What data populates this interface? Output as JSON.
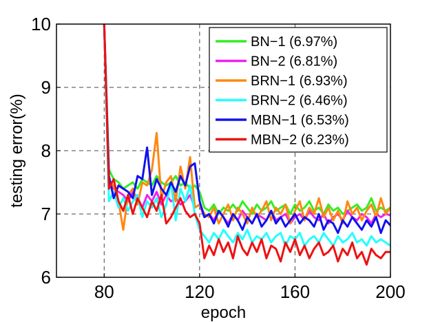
{
  "chart_data": {
    "type": "line",
    "title": "",
    "xlabel": "epoch",
    "ylabel": "testing error(%)",
    "xlim": [
      60,
      200
    ],
    "ylim": [
      6,
      10
    ],
    "xticks": [
      "80",
      "120",
      "160",
      "200"
    ],
    "yticks": [
      "6",
      "7",
      "8",
      "9",
      "10"
    ],
    "grid": "dashed lines at ticks",
    "legend_position": "top-right",
    "series": [
      {
        "name": "BN−1 (6.97%)",
        "color": "#33ee22",
        "x": [
          80,
          82,
          84,
          86,
          88,
          90,
          92,
          94,
          96,
          98,
          100,
          102,
          104,
          106,
          108,
          110,
          112,
          114,
          116,
          118,
          120,
          122,
          124,
          126,
          128,
          130,
          132,
          134,
          136,
          138,
          140,
          142,
          144,
          146,
          148,
          150,
          152,
          154,
          156,
          158,
          160,
          162,
          164,
          166,
          168,
          170,
          172,
          174,
          176,
          178,
          180,
          182,
          184,
          186,
          188,
          190,
          192,
          194,
          196,
          198,
          200
        ],
        "values": [
          10,
          7.7,
          7.55,
          7.5,
          7.4,
          7.45,
          7.5,
          7.4,
          7.55,
          7.5,
          7.45,
          7.6,
          7.5,
          7.45,
          7.5,
          7.6,
          7.45,
          7.5,
          7.4,
          7.45,
          7.35,
          7.1,
          7.05,
          7.15,
          7.0,
          7.1,
          7.05,
          7.15,
          7.05,
          7.2,
          7.1,
          7.0,
          7.15,
          7.05,
          7.1,
          7.2,
          7.05,
          7.1,
          7.15,
          7.0,
          7.15,
          7.05,
          7.1,
          7.2,
          7.05,
          7.1,
          7.0,
          7.15,
          7.05,
          7.1,
          7.0,
          7.05,
          7.1,
          7.15,
          7.05,
          7.1,
          7.25,
          7.05,
          7.1,
          7.05,
          7.1
        ]
      },
      {
        "name": "BN−2 (6.81%)",
        "color": "#ee22ee",
        "x": [
          80,
          82,
          84,
          86,
          88,
          90,
          92,
          94,
          96,
          98,
          100,
          102,
          104,
          106,
          108,
          110,
          112,
          114,
          116,
          118,
          120,
          122,
          124,
          126,
          128,
          130,
          132,
          134,
          136,
          138,
          140,
          142,
          144,
          146,
          148,
          150,
          152,
          154,
          156,
          158,
          160,
          162,
          164,
          166,
          168,
          170,
          172,
          174,
          176,
          178,
          180,
          182,
          184,
          186,
          188,
          190,
          192,
          194,
          196,
          198,
          200
        ],
        "values": [
          10,
          7.5,
          7.4,
          7.35,
          7.3,
          7.2,
          7.35,
          7.25,
          7.1,
          7.3,
          7.2,
          7.35,
          7.15,
          7.3,
          7.2,
          7.25,
          7.15,
          7.2,
          7.3,
          7.1,
          7.15,
          6.95,
          7.0,
          6.9,
          7.05,
          6.95,
          6.85,
          7.0,
          6.9,
          7.05,
          6.95,
          6.85,
          7.0,
          6.95,
          6.9,
          7.05,
          6.9,
          6.95,
          7.0,
          6.85,
          6.95,
          7.0,
          6.9,
          7.05,
          6.95,
          6.9,
          7.0,
          6.85,
          6.95,
          7.0,
          6.9,
          7.05,
          6.95,
          6.9,
          7.0,
          6.95,
          6.85,
          7.0,
          6.95,
          7.0,
          6.98
        ]
      },
      {
        "name": "BRN−1 (6.93%)",
        "color": "#ff8811",
        "x": [
          80,
          82,
          84,
          86,
          88,
          90,
          92,
          94,
          96,
          98,
          100,
          102,
          104,
          106,
          108,
          110,
          112,
          114,
          116,
          118,
          120,
          122,
          124,
          126,
          128,
          130,
          132,
          134,
          136,
          138,
          140,
          142,
          144,
          146,
          148,
          150,
          152,
          154,
          156,
          158,
          160,
          162,
          164,
          166,
          168,
          170,
          172,
          174,
          176,
          178,
          180,
          182,
          184,
          186,
          188,
          190,
          192,
          194,
          196,
          198,
          200
        ],
        "values": [
          10,
          7.5,
          7.45,
          7.2,
          6.75,
          7.3,
          7.4,
          7.15,
          7.5,
          7.45,
          7.7,
          8.28,
          7.25,
          7.5,
          7.6,
          7.2,
          7.75,
          7.4,
          7.9,
          7.1,
          7.15,
          7.0,
          6.95,
          7.1,
          6.85,
          7.0,
          7.15,
          6.9,
          7.1,
          7.0,
          6.85,
          7.1,
          6.95,
          7.05,
          7.2,
          6.9,
          7.1,
          7.0,
          7.15,
          6.85,
          7.05,
          7.2,
          6.9,
          7.1,
          7.0,
          7.25,
          6.95,
          7.1,
          6.9,
          7.05,
          6.85,
          7.2,
          7.0,
          7.1,
          6.9,
          7.05,
          7.15,
          6.95,
          7.25,
          7.0,
          7.1
        ]
      },
      {
        "name": "BRN−2 (6.46%)",
        "color": "#22ffff",
        "x": [
          80,
          82,
          84,
          86,
          88,
          90,
          92,
          94,
          96,
          98,
          100,
          102,
          104,
          106,
          108,
          110,
          112,
          114,
          116,
          118,
          120,
          122,
          124,
          126,
          128,
          130,
          132,
          134,
          136,
          138,
          140,
          142,
          144,
          146,
          148,
          150,
          152,
          154,
          156,
          158,
          160,
          162,
          164,
          166,
          168,
          170,
          172,
          174,
          176,
          178,
          180,
          182,
          184,
          186,
          188,
          190,
          192,
          194,
          196,
          198,
          200
        ],
        "values": [
          10,
          7.2,
          7.35,
          7.1,
          7.25,
          7.05,
          7.2,
          7.3,
          6.95,
          7.2,
          7.1,
          7.25,
          6.95,
          7.15,
          7.5,
          6.9,
          7.4,
          7.2,
          7.45,
          7.0,
          6.75,
          6.65,
          6.55,
          6.7,
          6.6,
          6.75,
          6.65,
          6.55,
          6.7,
          6.6,
          6.75,
          6.55,
          6.65,
          6.6,
          6.7,
          6.55,
          6.65,
          6.7,
          6.5,
          6.65,
          6.6,
          6.7,
          6.5,
          6.6,
          6.65,
          6.55,
          6.7,
          6.6,
          6.5,
          6.65,
          6.55,
          6.6,
          6.7,
          6.55,
          6.6,
          6.5,
          6.65,
          6.55,
          6.6,
          6.55,
          6.5
        ]
      },
      {
        "name": "MBN−1 (6.53%)",
        "color": "#1111ee",
        "x": [
          80,
          82,
          84,
          86,
          88,
          90,
          92,
          94,
          96,
          98,
          100,
          102,
          104,
          106,
          108,
          110,
          112,
          114,
          116,
          118,
          120,
          122,
          124,
          126,
          128,
          130,
          132,
          134,
          136,
          138,
          140,
          142,
          144,
          146,
          148,
          150,
          152,
          154,
          156,
          158,
          160,
          162,
          164,
          166,
          168,
          170,
          172,
          174,
          176,
          178,
          180,
          182,
          184,
          186,
          188,
          190,
          192,
          194,
          196,
          198,
          200
        ],
        "values": [
          10,
          7.6,
          7.25,
          7.45,
          7.4,
          7.35,
          7.25,
          7.6,
          7.55,
          8.05,
          7.3,
          7.55,
          7.4,
          7.3,
          7.5,
          7.35,
          7.6,
          7.45,
          7.75,
          7.8,
          7.2,
          6.95,
          7.0,
          6.85,
          7.05,
          6.95,
          6.8,
          7.0,
          6.9,
          6.75,
          6.95,
          6.85,
          7.0,
          6.8,
          6.9,
          7.05,
          6.85,
          6.95,
          6.8,
          6.9,
          7.0,
          6.85,
          6.95,
          6.9,
          6.8,
          7.0,
          6.75,
          6.9,
          6.85,
          6.7,
          6.9,
          6.8,
          6.95,
          6.85,
          6.75,
          6.9,
          6.8,
          6.95,
          6.7,
          6.9,
          6.82
        ]
      },
      {
        "name": "MBN−2 (6.23%)",
        "color": "#ee1111",
        "x": [
          80,
          82,
          84,
          86,
          88,
          90,
          92,
          94,
          96,
          98,
          100,
          102,
          104,
          106,
          108,
          110,
          112,
          114,
          116,
          118,
          120,
          122,
          124,
          126,
          128,
          130,
          132,
          134,
          136,
          138,
          140,
          142,
          144,
          146,
          148,
          150,
          152,
          154,
          156,
          158,
          160,
          162,
          164,
          166,
          168,
          170,
          172,
          174,
          176,
          178,
          180,
          182,
          184,
          186,
          188,
          190,
          192,
          194,
          196,
          198,
          200
        ],
        "values": [
          10,
          7.4,
          7.55,
          7.2,
          7.05,
          7.3,
          7.0,
          7.25,
          7.1,
          6.95,
          7.2,
          7.05,
          7.3,
          6.85,
          6.95,
          7.1,
          7.25,
          7.05,
          6.95,
          7.0,
          6.85,
          6.3,
          6.5,
          6.35,
          6.6,
          6.4,
          6.55,
          6.3,
          6.65,
          6.45,
          6.35,
          6.55,
          6.4,
          6.6,
          6.3,
          6.5,
          6.45,
          6.25,
          6.55,
          6.4,
          6.6,
          6.35,
          6.5,
          6.3,
          6.45,
          6.55,
          6.35,
          6.4,
          6.5,
          6.25,
          6.45,
          6.35,
          6.55,
          6.3,
          6.4,
          6.2,
          6.45,
          6.35,
          6.3,
          6.4,
          6.4
        ]
      }
    ]
  }
}
